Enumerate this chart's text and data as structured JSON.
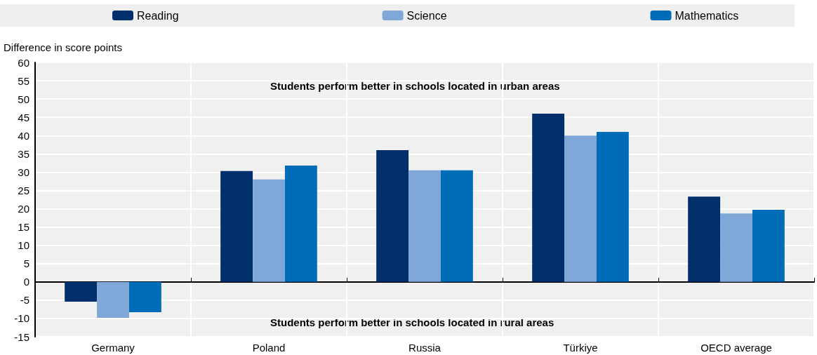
{
  "chart_data": {
    "type": "bar",
    "ylabel": "Difference in score points",
    "categories": [
      "Germany",
      "Poland",
      "Russia",
      "Türkiye",
      "OECD average"
    ],
    "series": [
      {
        "name": "Reading",
        "color": "#002f6c",
        "values": [
          -5.4,
          30.3,
          36.0,
          46.0,
          23.3
        ]
      },
      {
        "name": "Science",
        "color": "#7fa8d9",
        "values": [
          -9.8,
          28.0,
          30.5,
          40.0,
          18.7
        ]
      },
      {
        "name": "Mathematics",
        "color": "#006bb6",
        "values": [
          -8.3,
          31.8,
          30.5,
          41.0,
          19.7
        ]
      }
    ],
    "ylim": [
      -15,
      60
    ],
    "yticks": [
      -15,
      -10,
      -5,
      0,
      5,
      10,
      15,
      20,
      25,
      30,
      35,
      40,
      45,
      50,
      55,
      60
    ],
    "annotations": [
      "Students perform better in schools located in urban areas",
      "Students perform better in schools located in rural areas"
    ],
    "grid": true,
    "legend": "top"
  }
}
